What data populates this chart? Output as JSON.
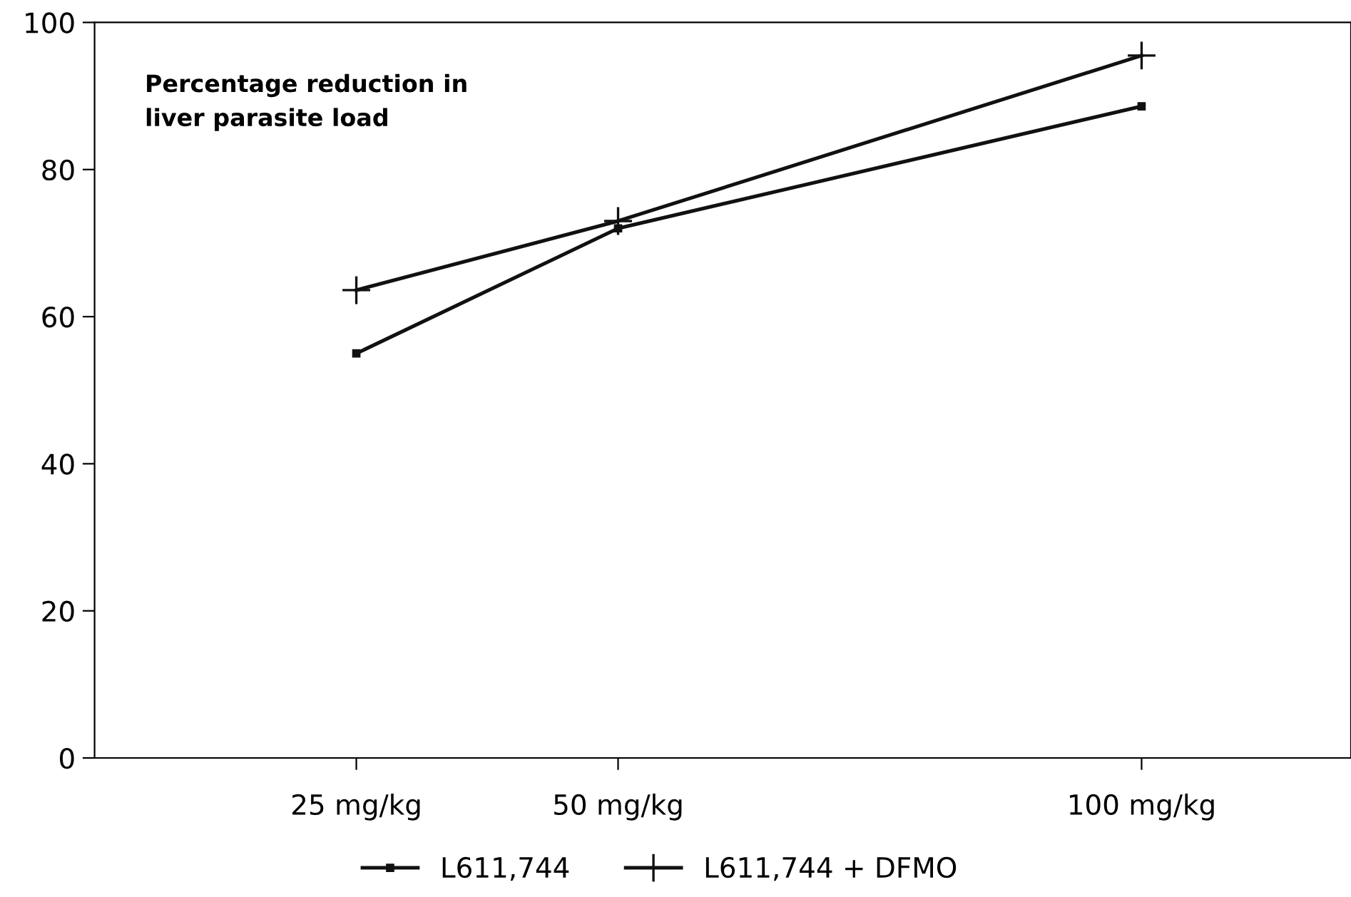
{
  "chart_data": {
    "type": "line",
    "x": [
      25,
      50,
      100
    ],
    "xlim": [
      0,
      120
    ],
    "xticks": [
      {
        "value": 25,
        "label": "25 mg/kg"
      },
      {
        "value": 50,
        "label": "50 mg/kg"
      },
      {
        "value": 100,
        "label": "100 mg/kg"
      }
    ],
    "ylim": [
      0,
      100
    ],
    "yticks": [
      0,
      20,
      40,
      60,
      80,
      100
    ],
    "series": [
      {
        "name": "L611,744",
        "color": "#111111",
        "values": [
          55,
          72,
          88.6
        ],
        "marker": "square"
      },
      {
        "name": "L611,744 + DFMO",
        "color": "#111111",
        "values": [
          63.6,
          73,
          95.5
        ],
        "marker": "cross"
      }
    ],
    "annotations": [
      "Percentage reduction in\nliver parasite load"
    ],
    "legend": "bottom",
    "grid": false,
    "line_style": "solid"
  }
}
